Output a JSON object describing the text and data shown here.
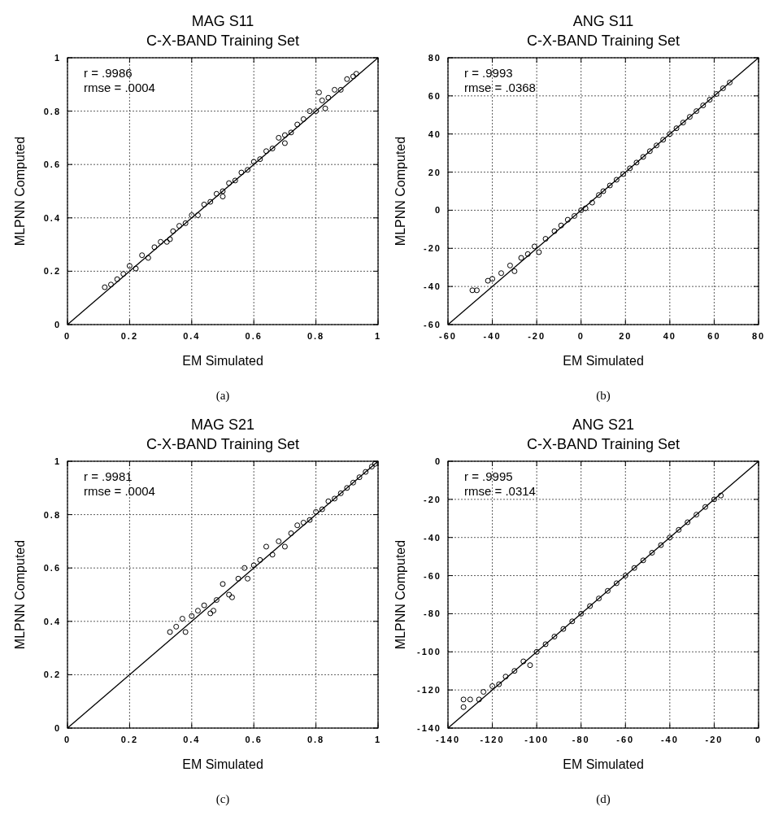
{
  "chart_data": [
    {
      "type": "scatter",
      "title": "MAG S11",
      "subtitle": "C-X-BAND Training Set",
      "xlabel": "EM  Simulated",
      "ylabel": "MLPNN  Computed",
      "xlim": [
        0,
        1
      ],
      "ylim": [
        0,
        1
      ],
      "xticks": [
        0,
        0.2,
        0.4,
        0.6,
        0.8,
        1
      ],
      "yticks": [
        0,
        0.2,
        0.4,
        0.6,
        0.8,
        1
      ],
      "grid": true,
      "marker": "circle",
      "annotations": [
        "r = .9986",
        "rmse = .0004",
        "(a)"
      ],
      "series": [
        {
          "color": "#000000",
          "x": [
            0.12,
            0.14,
            0.16,
            0.18,
            0.2,
            0.22,
            0.24,
            0.26,
            0.28,
            0.3,
            0.32,
            0.33,
            0.34,
            0.36,
            0.38,
            0.4,
            0.42,
            0.44,
            0.46,
            0.48,
            0.5,
            0.5,
            0.52,
            0.54,
            0.56,
            0.58,
            0.6,
            0.62,
            0.64,
            0.66,
            0.68,
            0.7,
            0.7,
            0.72,
            0.74,
            0.76,
            0.78,
            0.8,
            0.81,
            0.82,
            0.83,
            0.84,
            0.86,
            0.88,
            0.9,
            0.92,
            0.93
          ],
          "values": [
            0.14,
            0.15,
            0.17,
            0.19,
            0.22,
            0.21,
            0.26,
            0.25,
            0.29,
            0.31,
            0.31,
            0.32,
            0.35,
            0.37,
            0.38,
            0.41,
            0.41,
            0.45,
            0.46,
            0.49,
            0.5,
            0.48,
            0.53,
            0.54,
            0.57,
            0.58,
            0.61,
            0.62,
            0.65,
            0.66,
            0.7,
            0.71,
            0.68,
            0.72,
            0.75,
            0.77,
            0.8,
            0.8,
            0.87,
            0.84,
            0.81,
            0.85,
            0.88,
            0.88,
            0.92,
            0.93,
            0.94
          ]
        },
        {
          "type": "line",
          "color": "#000000",
          "marker": "none",
          "x": [
            0,
            1
          ],
          "values": [
            0,
            1
          ]
        }
      ]
    },
    {
      "type": "scatter",
      "title": "ANG S11",
      "subtitle": "C-X-BAND Training Set",
      "xlabel": "EM  Simulated",
      "ylabel": "MLPNN  Computed",
      "xlim": [
        -60,
        80
      ],
      "ylim": [
        -60,
        80
      ],
      "xticks": [
        -60,
        -40,
        -20,
        0,
        20,
        40,
        60,
        80
      ],
      "yticks": [
        -60,
        -40,
        -20,
        0,
        20,
        40,
        60,
        80
      ],
      "grid": true,
      "marker": "circle",
      "annotations": [
        "r = .9993",
        "rmse = .0368",
        "(b)"
      ],
      "series": [
        {
          "color": "#000000",
          "x": [
            -49,
            -47,
            -42,
            -40,
            -36,
            -32,
            -30,
            -27,
            -24,
            -21,
            -19,
            -16,
            -12,
            -9,
            -6,
            -3,
            0,
            2,
            5,
            8,
            10,
            13,
            16,
            19,
            22,
            25,
            28,
            31,
            34,
            37,
            40,
            43,
            46,
            49,
            52,
            55,
            58,
            61,
            64,
            67
          ],
          "values": [
            -42,
            -42,
            -37,
            -36,
            -33,
            -29,
            -32,
            -25,
            -23,
            -19,
            -22,
            -15,
            -11,
            -8,
            -5,
            -3,
            0,
            1,
            4,
            8,
            10,
            13,
            16,
            19,
            22,
            25,
            28,
            31,
            34,
            37,
            40,
            43,
            46,
            49,
            52,
            55,
            58,
            61,
            64,
            67
          ]
        },
        {
          "type": "line",
          "color": "#000000",
          "marker": "none",
          "x": [
            -60,
            80
          ],
          "values": [
            -60,
            80
          ]
        }
      ]
    },
    {
      "type": "scatter",
      "title": "MAG S21",
      "subtitle": "C-X-BAND Training Set",
      "xlabel": "EM  Simulated",
      "ylabel": "MLPNN  Computed",
      "xlim": [
        0,
        1
      ],
      "ylim": [
        0,
        1
      ],
      "xticks": [
        0,
        0.2,
        0.4,
        0.6,
        0.8,
        1
      ],
      "yticks": [
        0,
        0.2,
        0.4,
        0.6,
        0.8,
        1
      ],
      "grid": true,
      "marker": "circle",
      "annotations": [
        "r = .9981",
        "rmse = .0004",
        "(c)"
      ],
      "series": [
        {
          "color": "#000000",
          "x": [
            0.33,
            0.35,
            0.37,
            0.38,
            0.4,
            0.42,
            0.44,
            0.46,
            0.47,
            0.48,
            0.5,
            0.52,
            0.53,
            0.55,
            0.57,
            0.58,
            0.6,
            0.62,
            0.64,
            0.66,
            0.68,
            0.7,
            0.72,
            0.74,
            0.76,
            0.78,
            0.8,
            0.82,
            0.84,
            0.86,
            0.88,
            0.9,
            0.92,
            0.94,
            0.96,
            0.98,
            0.99
          ],
          "values": [
            0.36,
            0.38,
            0.41,
            0.36,
            0.42,
            0.44,
            0.46,
            0.43,
            0.44,
            0.48,
            0.54,
            0.5,
            0.49,
            0.56,
            0.6,
            0.56,
            0.61,
            0.63,
            0.68,
            0.65,
            0.7,
            0.68,
            0.73,
            0.76,
            0.77,
            0.78,
            0.81,
            0.82,
            0.85,
            0.86,
            0.88,
            0.9,
            0.92,
            0.94,
            0.96,
            0.98,
            0.99
          ]
        },
        {
          "type": "line",
          "color": "#000000",
          "marker": "none",
          "x": [
            0,
            1
          ],
          "values": [
            0,
            1
          ]
        }
      ]
    },
    {
      "type": "scatter",
      "title": "ANG S21",
      "subtitle": "C-X-BAND Training Set",
      "xlabel": "EM  Simulated",
      "ylabel": "MLPNN  Computed",
      "xlim": [
        -140,
        0
      ],
      "ylim": [
        -140,
        0
      ],
      "xticks": [
        -140,
        -120,
        -100,
        -80,
        -60,
        -40,
        -20,
        0
      ],
      "yticks": [
        -140,
        -120,
        -100,
        -80,
        -60,
        -40,
        -20,
        0
      ],
      "grid": true,
      "marker": "circle",
      "annotations": [
        "r = .9995",
        "rmse = .0314",
        "(d)"
      ],
      "series": [
        {
          "color": "#000000",
          "x": [
            -133,
            -133,
            -130,
            -126,
            -124,
            -120,
            -117,
            -114,
            -110,
            -106,
            -103,
            -100,
            -96,
            -92,
            -88,
            -84,
            -80,
            -76,
            -72,
            -68,
            -64,
            -60,
            -56,
            -52,
            -48,
            -44,
            -40,
            -36,
            -32,
            -28,
            -24,
            -20,
            -17
          ],
          "values": [
            -129,
            -125,
            -125,
            -125,
            -121,
            -118,
            -117,
            -113,
            -110,
            -105,
            -107,
            -100,
            -96,
            -92,
            -88,
            -84,
            -80,
            -76,
            -72,
            -68,
            -64,
            -60,
            -56,
            -52,
            -48,
            -44,
            -40,
            -36,
            -32,
            -28,
            -24,
            -20,
            -18
          ]
        },
        {
          "type": "line",
          "color": "#000000",
          "marker": "none",
          "x": [
            -140,
            0
          ],
          "values": [
            -140,
            0
          ]
        }
      ]
    }
  ]
}
